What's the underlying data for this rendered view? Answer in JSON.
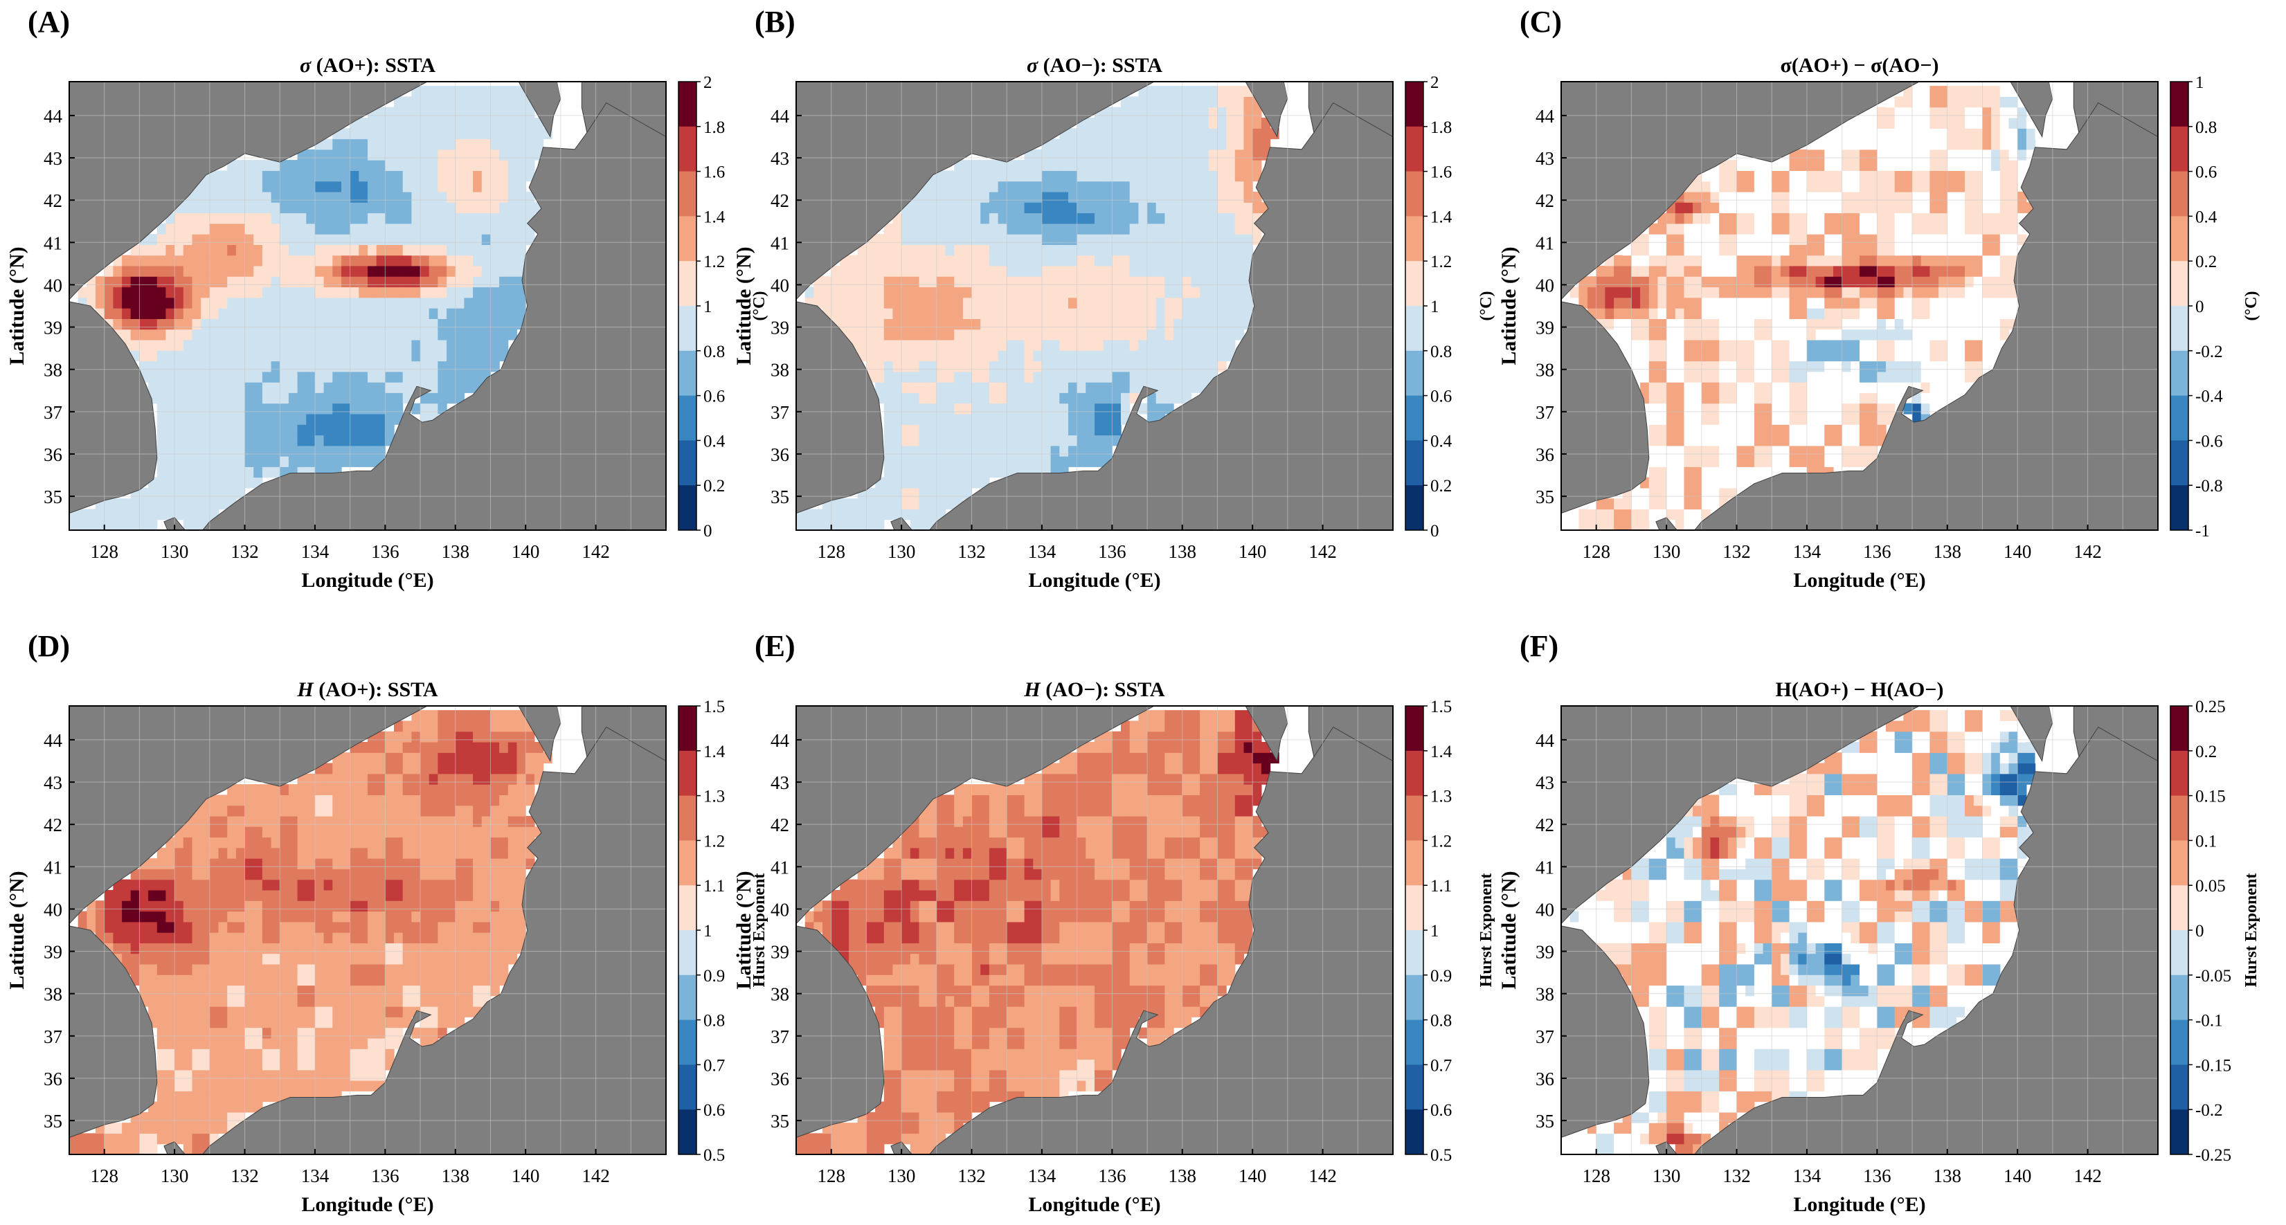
{
  "figure": {
    "colors": {
      "land": "#7f7f7f",
      "coast": "#404040",
      "grid": "#c9c9c9",
      "axis": "#000000",
      "ramp": [
        "#08306b",
        "#1f5fa3",
        "#3a86c0",
        "#6fa9d3",
        "#a8cde6",
        "#d8e8f2",
        "#fbd6c2",
        "#f4a582",
        "#e07a5f",
        "#cd4a43",
        "#b51d2d",
        "#67001f"
      ]
    },
    "panels": [
      {
        "letter": "(A)",
        "title_symbol": "σ",
        "title_rest": " (AO+): SSTA",
        "xlabel": "Longitude (°E)",
        "ylabel": "Latitude (°N)",
        "xticks": [
          "128",
          "130",
          "132",
          "134",
          "136",
          "138",
          "140",
          "142"
        ],
        "yticks": [
          "44",
          "43",
          "42",
          "41",
          "40",
          "39",
          "38",
          "37",
          "36",
          "35"
        ],
        "colorbar": {
          "label": "(°C)",
          "ticks": [
            "2",
            "1.8",
            "1.6",
            "1.4",
            "1.2",
            "1",
            "0.8",
            "0.6",
            "0.4",
            "0.2",
            "0"
          ],
          "min": 0,
          "max": 2
        },
        "pattern": "sigma_pos"
      },
      {
        "letter": "(B)",
        "title_symbol": "σ",
        "title_rest": " (AO−): SSTA",
        "xlabel": "Longitude (°E)",
        "ylabel": "Latitude (°N)",
        "xticks": [
          "128",
          "130",
          "132",
          "134",
          "136",
          "138",
          "140",
          "142"
        ],
        "yticks": [
          "44",
          "43",
          "42",
          "41",
          "40",
          "39",
          "38",
          "37",
          "36",
          "35"
        ],
        "colorbar": {
          "label": "(°C)",
          "ticks": [
            "2",
            "1.8",
            "1.6",
            "1.4",
            "1.2",
            "1",
            "0.8",
            "0.6",
            "0.4",
            "0.2",
            "0"
          ],
          "min": 0,
          "max": 2
        },
        "pattern": "sigma_neg"
      },
      {
        "letter": "(C)",
        "title_symbol": "",
        "title_rest": "σ(AO+) − σ(AO−)",
        "xlabel": "Longitude (°E)",
        "ylabel": "Latitude (°N)",
        "xticks": [
          "128",
          "130",
          "132",
          "134",
          "136",
          "138",
          "140",
          "142"
        ],
        "yticks": [
          "44",
          "43",
          "42",
          "41",
          "40",
          "39",
          "38",
          "37",
          "36",
          "35"
        ],
        "colorbar": {
          "label": "(°C)",
          "ticks": [
            "1",
            "0.8",
            "0.6",
            "0.4",
            "0.2",
            "0",
            "-0.2",
            "-0.4",
            "-0.6",
            "-0.8",
            "-1"
          ],
          "min": -1,
          "max": 1
        },
        "pattern": "sigma_diff"
      },
      {
        "letter": "(D)",
        "title_symbol": "H",
        "title_rest": " (AO+): SSTA",
        "xlabel": "Longitude (°E)",
        "ylabel": "Latitude (°N)",
        "xticks": [
          "128",
          "130",
          "132",
          "134",
          "136",
          "138",
          "140",
          "142"
        ],
        "yticks": [
          "44",
          "43",
          "42",
          "41",
          "40",
          "39",
          "38",
          "37",
          "36",
          "35"
        ],
        "colorbar": {
          "label": "Hurst Exponent",
          "ticks": [
            "1.5",
            "1.4",
            "1.3",
            "1.2",
            "1.1",
            "1",
            "0.9",
            "0.8",
            "0.7",
            "0.6",
            "0.5"
          ],
          "min": 0.5,
          "max": 1.5
        },
        "pattern": "hurst_pos"
      },
      {
        "letter": "(E)",
        "title_symbol": "H",
        "title_rest": " (AO−): SSTA",
        "xlabel": "Longitude (°E)",
        "ylabel": "Latitude (°N)",
        "xticks": [
          "128",
          "130",
          "132",
          "134",
          "136",
          "138",
          "140",
          "142"
        ],
        "yticks": [
          "44",
          "43",
          "42",
          "41",
          "40",
          "39",
          "38",
          "37",
          "36",
          "35"
        ],
        "colorbar": {
          "label": "Hurst Exponent",
          "ticks": [
            "1.5",
            "1.4",
            "1.3",
            "1.2",
            "1.1",
            "1",
            "0.9",
            "0.8",
            "0.7",
            "0.6",
            "0.5"
          ],
          "min": 0.5,
          "max": 1.5
        },
        "pattern": "hurst_neg"
      },
      {
        "letter": "(F)",
        "title_symbol": "",
        "title_rest": "H(AO+) − H(AO−)",
        "xlabel": "Longitude (°E)",
        "ylabel": "Latitude (°N)",
        "xticks": [
          "128",
          "130",
          "132",
          "134",
          "136",
          "138",
          "140",
          "142"
        ],
        "yticks": [
          "44",
          "43",
          "42",
          "41",
          "40",
          "39",
          "38",
          "37",
          "36",
          "35"
        ],
        "colorbar": {
          "label": "Hurst Exponent",
          "ticks": [
            "0.25",
            "0.2",
            "0.15",
            "0.1",
            "0.05",
            "0",
            "-0.05",
            "-0.1",
            "-0.15",
            "-0.2",
            "-0.25"
          ],
          "min": -0.25,
          "max": 0.25
        },
        "pattern": "hurst_diff"
      }
    ]
  }
}
